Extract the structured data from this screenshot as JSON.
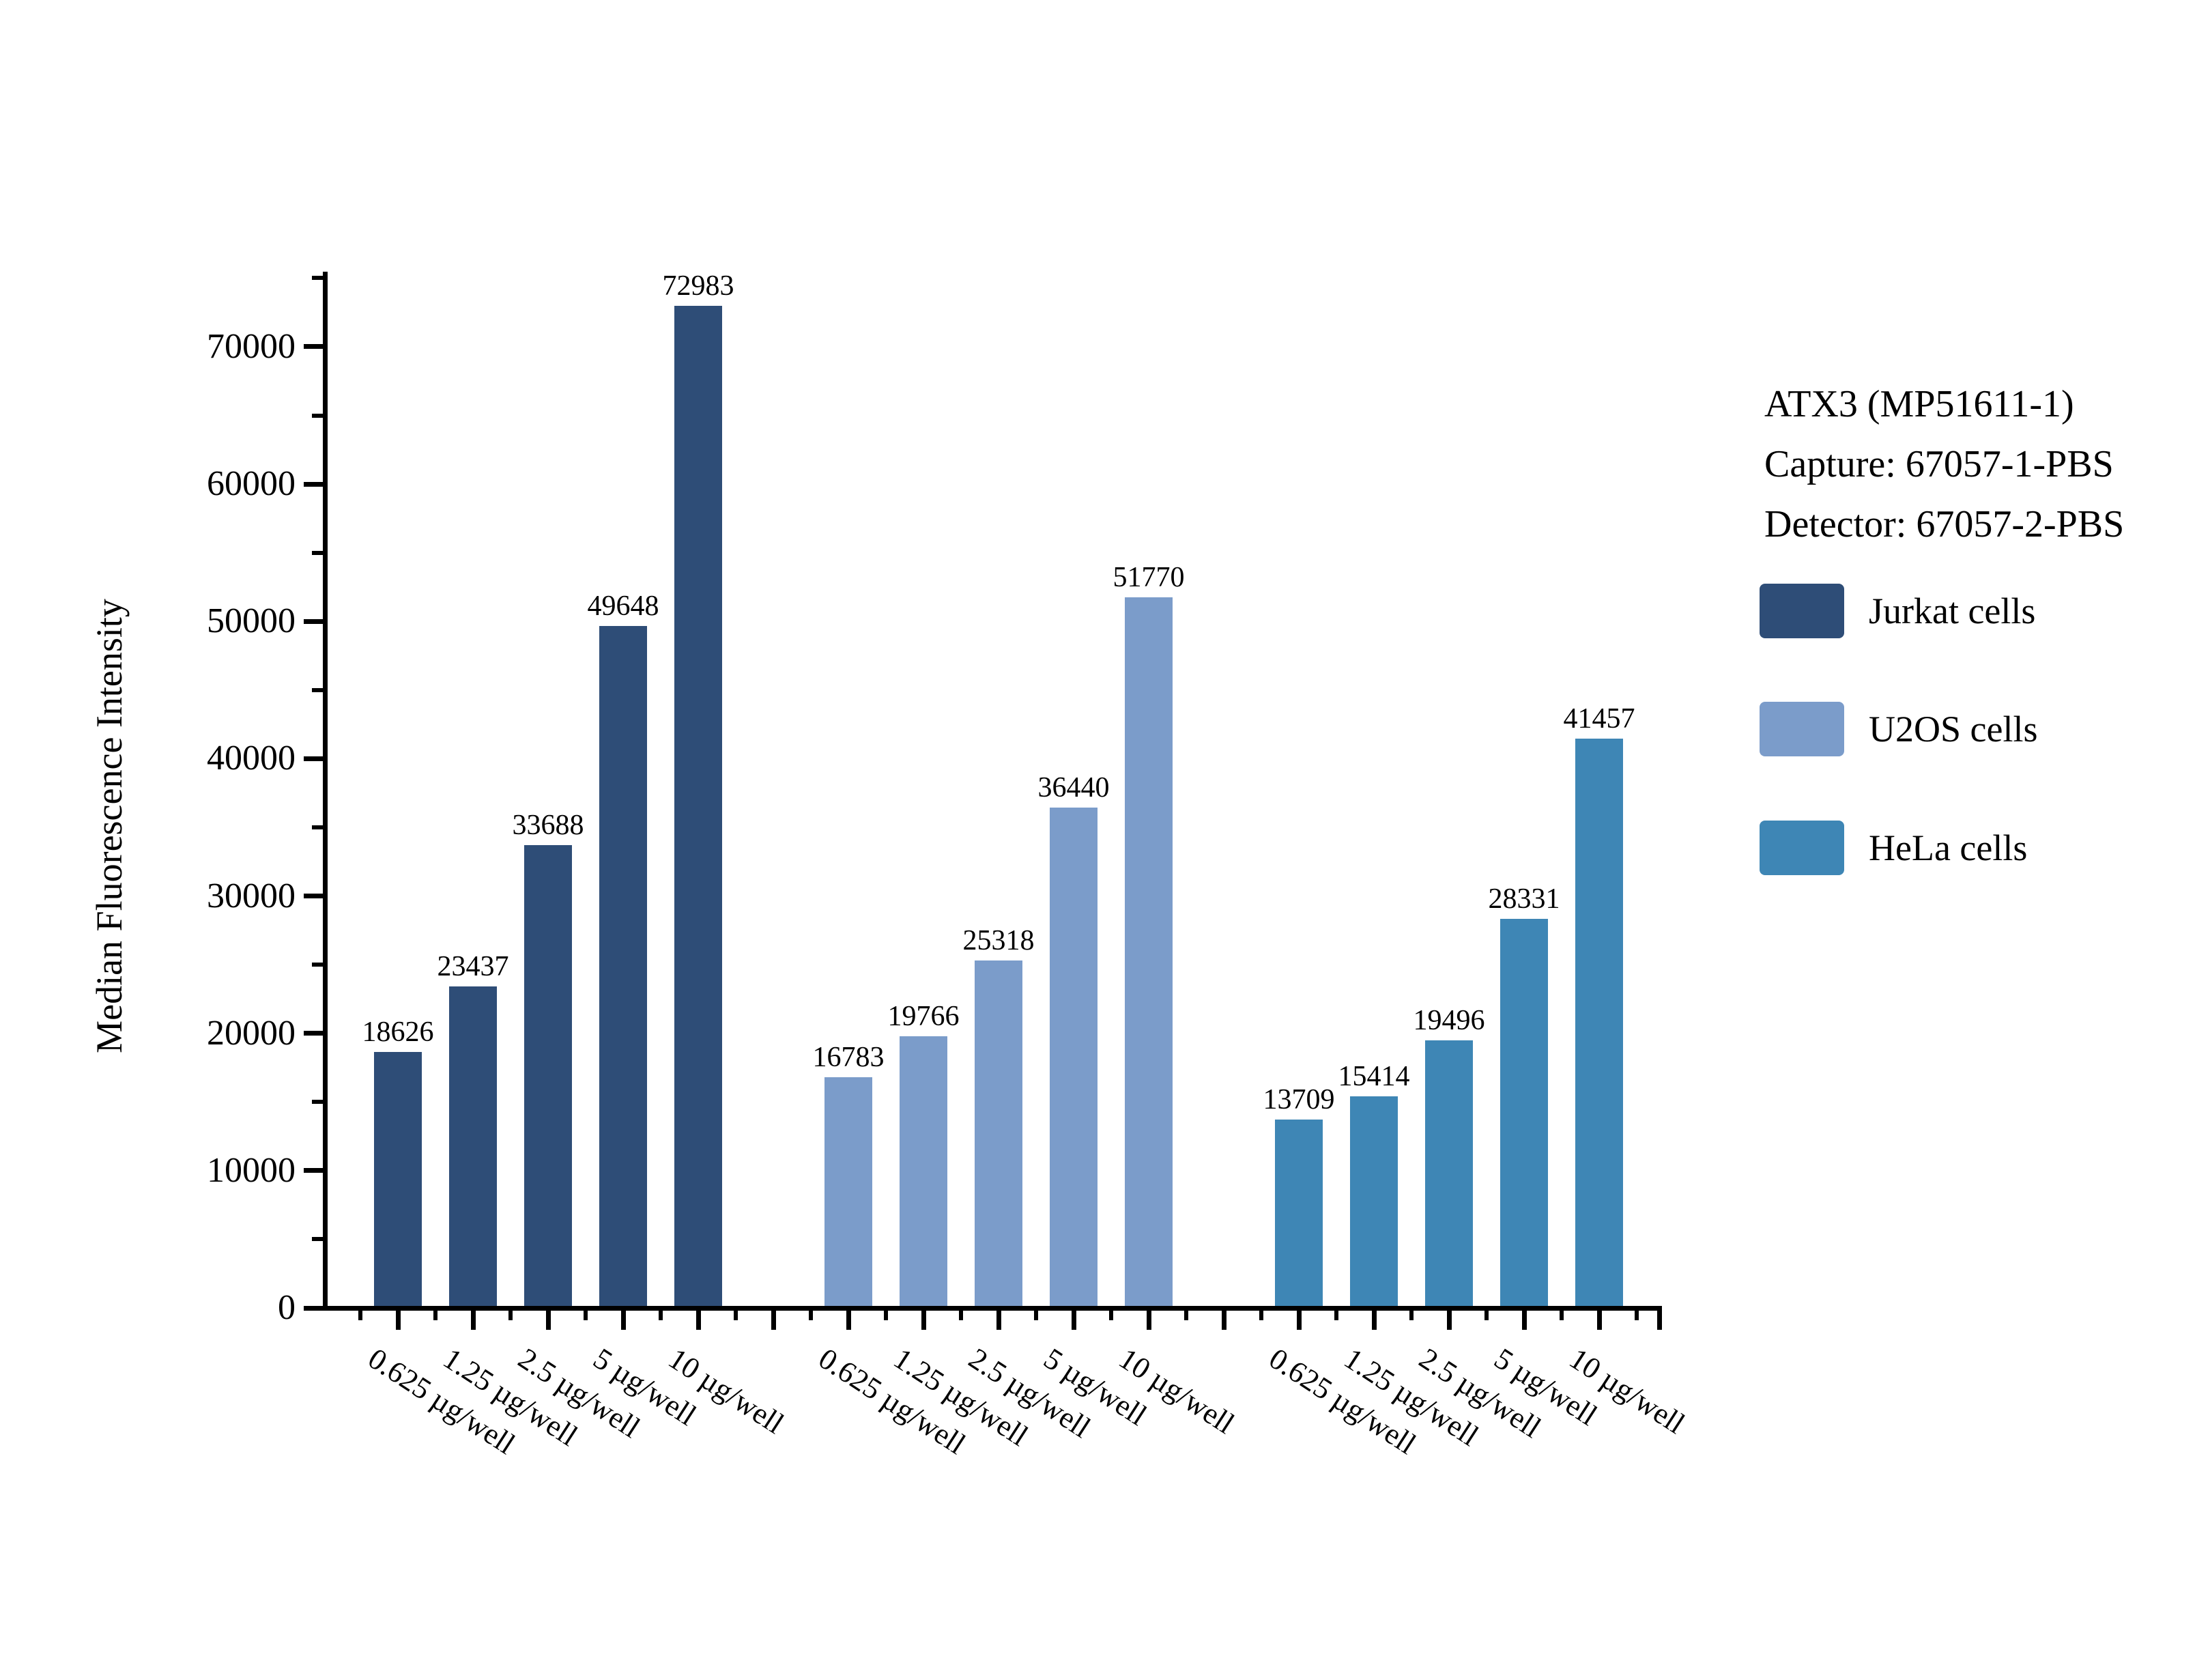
{
  "chart_data": {
    "type": "bar",
    "title": "",
    "ylabel": "Median Fluorescence Intensity",
    "xlabel": "",
    "annotation_lines": [
      "ATX3 (MP51611-1)",
      "Capture: 67057-1-PBS",
      "Detector: 67057-2-PBS"
    ],
    "categories": [
      "0.625 µg/well",
      "1.25 µg/well",
      "2.5 µg/well",
      "5 µg/well",
      "10 µg/well"
    ],
    "series": [
      {
        "name": "Jurkat cells",
        "color": "#2e4d77",
        "values": [
          18626,
          23437,
          33688,
          49648,
          72983
        ]
      },
      {
        "name": "U2OS cells",
        "color": "#7b9cca",
        "values": [
          16783,
          19766,
          25318,
          36440,
          51770
        ]
      },
      {
        "name": "HeLa cells",
        "color": "#3e86b5",
        "values": [
          13709,
          15414,
          19496,
          28331,
          41457
        ]
      }
    ],
    "ylim": [
      0,
      70000
    ],
    "ytick_step": 10000,
    "yminor_step": 5000,
    "ytick_labels": [
      "0",
      "10000",
      "20000",
      "30000",
      "40000",
      "50000",
      "60000",
      "70000"
    ],
    "bar_value_labels": true,
    "grid": false,
    "legend_position": "right",
    "axis_color": "#000000",
    "background_color": "#ffffff"
  }
}
